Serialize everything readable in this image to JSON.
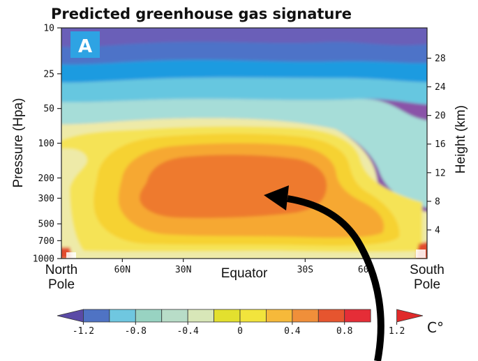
{
  "chart_data": {
    "type": "heatmap",
    "title": "Predicted greenhouse gas signature",
    "panel_label": "A",
    "x_axis": {
      "ticks": [
        {
          "label": "North Pole",
          "lines": [
            "North",
            "Pole"
          ],
          "lat": 90
        },
        {
          "label": "60N",
          "lat": 60
        },
        {
          "label": "30N",
          "lat": 30
        },
        {
          "label": "Equator",
          "lat": 0
        },
        {
          "label": "30S",
          "lat": -30
        },
        {
          "label": "60S",
          "lat": -60
        },
        {
          "label": "South Pole",
          "lines": [
            "South",
            "Pole"
          ],
          "lat": -90
        }
      ],
      "range": [
        90,
        -90
      ]
    },
    "y_left": {
      "label": "Pressure (Hpa)",
      "scale": "log",
      "range": [
        1000,
        10
      ],
      "ticks": [
        10,
        25,
        50,
        100,
        200,
        300,
        500,
        700,
        1000
      ]
    },
    "y_right": {
      "label": "Height (km)",
      "ticks": [
        4,
        8,
        12,
        16,
        20,
        24,
        28
      ]
    },
    "colorbar": {
      "unit": "C°",
      "range": [
        -1.4,
        1.4
      ],
      "step": 0.2,
      "tick_labels": [
        "-1.2",
        "-0.8",
        "-0.4",
        "0",
        "0.4",
        "0.8",
        "1.2"
      ],
      "colors": [
        "#5a4aa6",
        "#4f73c4",
        "#6fc7e0",
        "#98d3c2",
        "#b8ddc8",
        "#d8e7b8",
        "#e3e02e",
        "#f2e43c",
        "#f6b93a",
        "#f08f3a",
        "#e6552f",
        "#e52d37",
        "#e02a2a"
      ]
    },
    "field_bands": [
      {
        "value": -1.3,
        "color": "#8a52a8"
      },
      {
        "value": -1.1,
        "color": "#6a5fb8"
      },
      {
        "value": -0.9,
        "color": "#4d73c8"
      },
      {
        "value": -0.7,
        "color": "#1e9be0"
      },
      {
        "value": -0.5,
        "color": "#66c7e0"
      },
      {
        "value": -0.3,
        "color": "#a6ddd8"
      },
      {
        "value": -0.1,
        "color": "#eeeaa8"
      },
      {
        "value": 0.2,
        "color": "#f5e356"
      },
      {
        "value": 0.4,
        "color": "#f6d233"
      },
      {
        "value": 0.6,
        "color": "#f6a832"
      },
      {
        "value": 0.8,
        "color": "#ee7a2e"
      },
      {
        "value": 1.0,
        "color": "#e24b2d"
      }
    ],
    "annotation": "arrow pointing to tropical upper-troposphere hot spot",
    "grid": false
  }
}
